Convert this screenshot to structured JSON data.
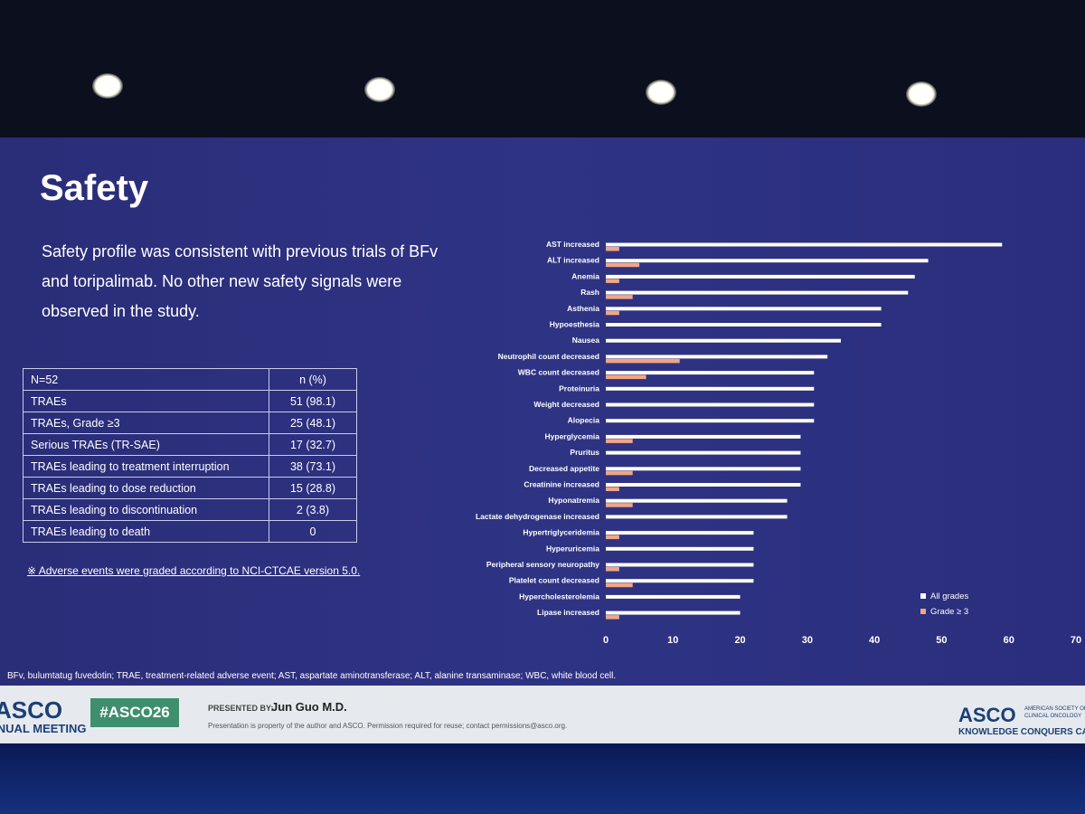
{
  "title": "Safety",
  "summary": "Safety profile was consistent with previous trials of BFv and toripalimab. No other new safety signals were observed in the study.",
  "table": {
    "header": [
      "N=52",
      "n (%)"
    ],
    "rows": [
      [
        "TRAEs",
        "51 (98.1)"
      ],
      [
        "TRAEs, Grade ≥3",
        "25 (48.1)"
      ],
      [
        "Serious TRAEs (TR-SAE)",
        "17 (32.7)"
      ],
      [
        "TRAEs leading to treatment interruption",
        "38 (73.1)"
      ],
      [
        "TRAEs leading to dose reduction",
        "15 (28.8)"
      ],
      [
        "TRAEs leading to discontinuation",
        "2 (3.8)"
      ],
      [
        "TRAEs leading to death",
        "0"
      ]
    ]
  },
  "note": "※ Adverse events were graded according to NCI-CTCAE version 5.0.",
  "chart_data": {
    "type": "bar",
    "orientation": "horizontal",
    "categories": [
      "AST increased",
      "ALT increased",
      "Anemia",
      "Rash",
      "Asthenia",
      "Hypoesthesia",
      "Nausea",
      "Neutrophil count decreased",
      "WBC count decreased",
      "Proteinuria",
      "Weight decreased",
      "Alopecia",
      "Hyperglycemia",
      "Pruritus",
      "Decreased appetite",
      "Creatinine increased",
      "Hyponatremia",
      "Lactate dehydrogenase increased",
      "Hypertriglyceridemia",
      "Hyperuricemia",
      "Peripheral sensory neuropathy",
      "Platelet count decreased",
      "Hypercholesterolemia",
      "Lipase increased"
    ],
    "series": [
      {
        "name": "All grades",
        "color": "#ffffff",
        "values": [
          59,
          48,
          46,
          45,
          41,
          41,
          35,
          33,
          31,
          31,
          31,
          31,
          29,
          29,
          29,
          29,
          27,
          27,
          22,
          22,
          22,
          22,
          20,
          20
        ]
      },
      {
        "name": "Grade ≥ 3",
        "color": "#f4a582",
        "values": [
          2,
          5,
          2,
          4,
          2,
          0,
          0,
          11,
          6,
          0,
          0,
          0,
          4,
          0,
          4,
          2,
          4,
          0,
          2,
          0,
          2,
          4,
          0,
          2
        ]
      }
    ],
    "xlim": [
      0,
      70
    ],
    "xticks": [
      0,
      10,
      20,
      30,
      40,
      50,
      60,
      70
    ],
    "legend": "bottom-right"
  },
  "abbreviations": "BFv, bulumtatug fuvedotin; TRAE, treatment-related adverse event; AST, aspartate aminotransferase; ALT, alanine transaminase; WBC, white blood cell.",
  "footer": {
    "meeting_logo": "ASCO",
    "meeting_name": "ANNUAL MEETING",
    "hashtag": "#ASCO26",
    "presented_by": "PRESENTED BY:",
    "presenter": "Jun Guo M.D.",
    "disclaimer": "Presentation is property of the author and ASCO. Permission required for reuse; contact permissions@asco.org.",
    "society_logo": "ASCO",
    "society_name": "AMERICAN SOCIETY OF CLINICAL ONCOLOGY",
    "tagline": "KNOWLEDGE CONQUERS CANCER"
  }
}
